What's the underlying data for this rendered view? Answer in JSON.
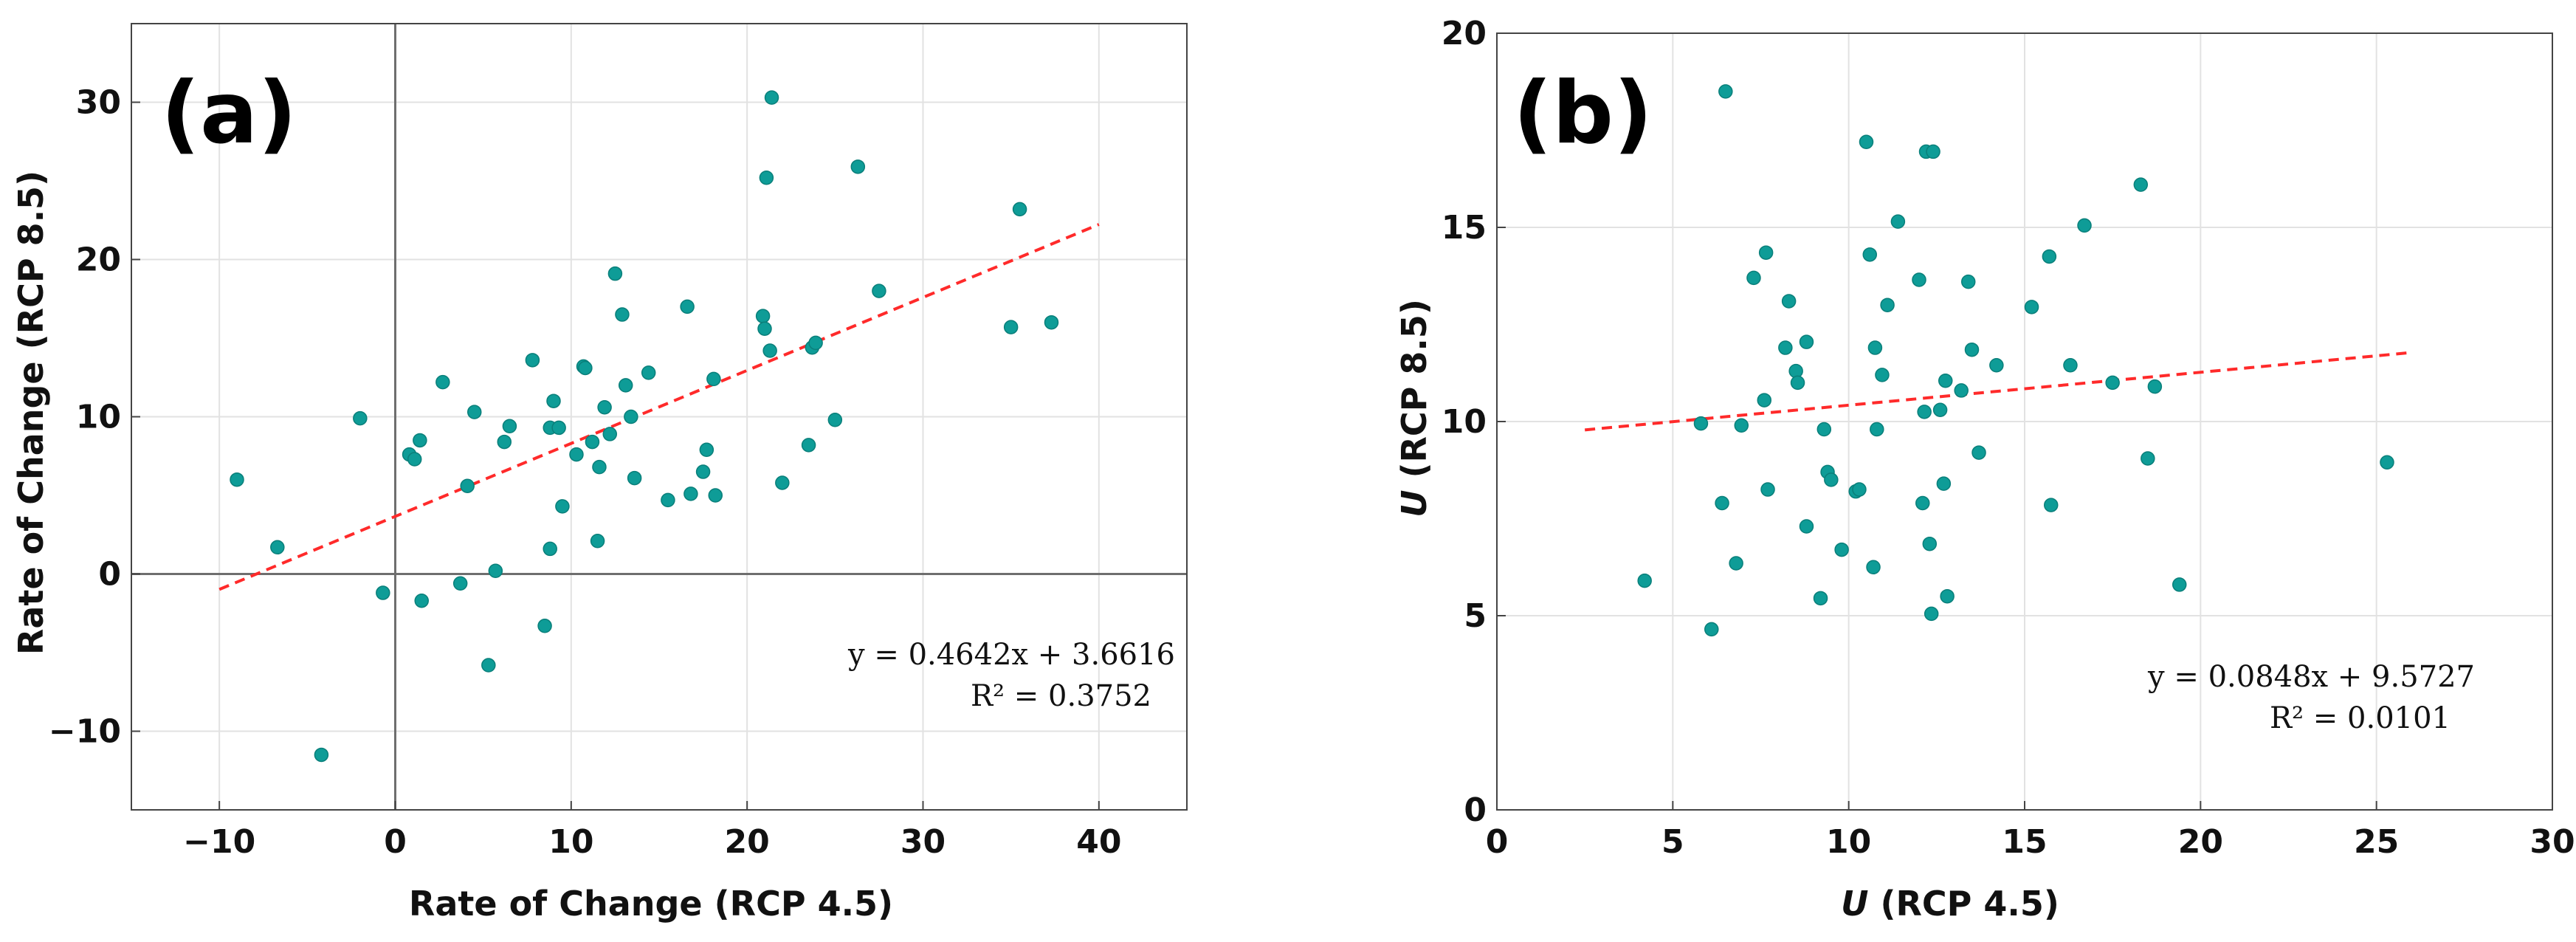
{
  "chart_data": [
    {
      "type": "scatter",
      "panel_label": "(a)",
      "xlabel": "Rate of Change (RCP 4.5)",
      "ylabel": "Rate of Change (RCP 8.5)",
      "xlim": [
        -15,
        45
      ],
      "ylim": [
        -15,
        35
      ],
      "xticks": [
        -10,
        0,
        10,
        20,
        30,
        40
      ],
      "yticks": [
        -10,
        0,
        10,
        20,
        30
      ],
      "xtick_labels": [
        "−10",
        "0",
        "10",
        "20",
        "30",
        "40"
      ],
      "ytick_labels": [
        "−10",
        "0",
        "10",
        "20",
        "30"
      ],
      "grid": true,
      "zero_lines": true,
      "point_color": "#0e9c97",
      "fit_color": "#ff2a2a",
      "fit": {
        "slope": 0.4642,
        "intercept": 3.6616,
        "x_range": [
          -10,
          40
        ]
      },
      "equation": "y = 0.4642x + 3.6616",
      "r2_text": "R² = 0.3752",
      "points": [
        [
          -9,
          6
        ],
        [
          -6.7,
          1.7
        ],
        [
          -4.2,
          -11.5
        ],
        [
          -2,
          9.9
        ],
        [
          -0.7,
          -1.2
        ],
        [
          0.8,
          7.6
        ],
        [
          1.1,
          7.3
        ],
        [
          1.4,
          8.5
        ],
        [
          1.5,
          -1.7
        ],
        [
          2.7,
          12.2
        ],
        [
          3.7,
          -0.6
        ],
        [
          4.1,
          5.6
        ],
        [
          4.5,
          10.3
        ],
        [
          5.3,
          -5.8
        ],
        [
          5.7,
          0.2
        ],
        [
          6.2,
          8.4
        ],
        [
          6.5,
          9.4
        ],
        [
          7.8,
          13.6
        ],
        [
          8.5,
          -3.3
        ],
        [
          8.8,
          1.6
        ],
        [
          8.8,
          9.3
        ],
        [
          9.0,
          11.0
        ],
        [
          9.3,
          9.3
        ],
        [
          9.5,
          4.3
        ],
        [
          10.3,
          7.6
        ],
        [
          10.7,
          13.2
        ],
        [
          10.8,
          13.1
        ],
        [
          11.2,
          8.4
        ],
        [
          11.5,
          2.1
        ],
        [
          11.6,
          6.8
        ],
        [
          11.9,
          10.6
        ],
        [
          12.2,
          8.9
        ],
        [
          12.5,
          19.1
        ],
        [
          12.9,
          16.5
        ],
        [
          13.1,
          12.0
        ],
        [
          13.4,
          10.0
        ],
        [
          13.6,
          6.1
        ],
        [
          14.4,
          12.8
        ],
        [
          15.5,
          4.7
        ],
        [
          16.6,
          17.0
        ],
        [
          16.8,
          5.1
        ],
        [
          17.5,
          6.5
        ],
        [
          17.7,
          7.9
        ],
        [
          18.1,
          12.4
        ],
        [
          18.2,
          5.0
        ],
        [
          20.9,
          16.4
        ],
        [
          21.0,
          15.6
        ],
        [
          21.1,
          25.2
        ],
        [
          21.3,
          14.2
        ],
        [
          21.4,
          30.3
        ],
        [
          22.0,
          5.8
        ],
        [
          23.5,
          8.2
        ],
        [
          23.7,
          14.4
        ],
        [
          23.9,
          14.7
        ],
        [
          25.0,
          9.8
        ],
        [
          26.3,
          25.9
        ],
        [
          27.5,
          18.0
        ],
        [
          35.0,
          15.7
        ],
        [
          35.5,
          23.2
        ],
        [
          37.3,
          16.0
        ]
      ]
    },
    {
      "type": "scatter",
      "panel_label": "(b)",
      "xlabel": "U (RCP 4.5)",
      "ylabel": "U (RCP 8.5)",
      "xlabel_italic": "U",
      "xlabel_rest": " (RCP 4.5)",
      "ylabel_italic": "U",
      "ylabel_rest": " (RCP 8.5)",
      "xlim": [
        0,
        30
      ],
      "ylim": [
        0,
        20
      ],
      "xticks": [
        0,
        5,
        10,
        15,
        20,
        25,
        30
      ],
      "yticks": [
        0,
        5,
        10,
        15,
        20
      ],
      "xtick_labels": [
        "0",
        "5",
        "10",
        "15",
        "20",
        "25",
        "30"
      ],
      "ytick_labels": [
        "0",
        "5",
        "10",
        "15",
        "20"
      ],
      "grid": true,
      "zero_lines": false,
      "point_color": "#0e9c97",
      "fit_color": "#ff2a2a",
      "fit": {
        "slope": 0.0848,
        "intercept": 9.5727,
        "x_range": [
          2.5,
          26
        ]
      },
      "equation": "y = 0.0848x + 9.5727",
      "r2_text": "R² = 0.0101",
      "points": [
        [
          4.2,
          5.9
        ],
        [
          5.8,
          9.95
        ],
        [
          6.1,
          4.65
        ],
        [
          6.4,
          7.9
        ],
        [
          6.5,
          18.5
        ],
        [
          6.8,
          6.35
        ],
        [
          6.95,
          9.9
        ],
        [
          7.3,
          13.7
        ],
        [
          7.6,
          10.55
        ],
        [
          7.65,
          14.35
        ],
        [
          7.7,
          8.25
        ],
        [
          8.2,
          11.9
        ],
        [
          8.3,
          13.1
        ],
        [
          8.5,
          11.3
        ],
        [
          8.55,
          11.0
        ],
        [
          8.8,
          7.3
        ],
        [
          8.8,
          12.05
        ],
        [
          9.2,
          5.45
        ],
        [
          9.3,
          9.8
        ],
        [
          9.4,
          8.7
        ],
        [
          9.5,
          8.5
        ],
        [
          9.8,
          6.7
        ],
        [
          10.2,
          8.2
        ],
        [
          10.3,
          8.25
        ],
        [
          10.5,
          17.2
        ],
        [
          10.6,
          14.3
        ],
        [
          10.7,
          6.25
        ],
        [
          10.75,
          11.9
        ],
        [
          10.8,
          9.8
        ],
        [
          10.95,
          11.2
        ],
        [
          11.1,
          13.0
        ],
        [
          11.4,
          15.15
        ],
        [
          12.0,
          13.65
        ],
        [
          12.1,
          7.9
        ],
        [
          12.15,
          10.25
        ],
        [
          12.2,
          16.95
        ],
        [
          12.3,
          6.85
        ],
        [
          12.35,
          5.05
        ],
        [
          12.4,
          16.95
        ],
        [
          12.6,
          10.3
        ],
        [
          12.7,
          8.4
        ],
        [
          12.75,
          11.05
        ],
        [
          12.8,
          5.5
        ],
        [
          13.2,
          10.8
        ],
        [
          13.4,
          13.6
        ],
        [
          13.5,
          11.85
        ],
        [
          13.7,
          9.2
        ],
        [
          14.2,
          11.45
        ],
        [
          15.2,
          12.95
        ],
        [
          15.7,
          14.25
        ],
        [
          15.75,
          7.85
        ],
        [
          16.3,
          11.45
        ],
        [
          16.7,
          15.05
        ],
        [
          17.5,
          11.0
        ],
        [
          18.3,
          16.1
        ],
        [
          18.5,
          9.05
        ],
        [
          18.7,
          10.9
        ],
        [
          19.4,
          5.8
        ],
        [
          25.3,
          8.95
        ]
      ]
    }
  ]
}
